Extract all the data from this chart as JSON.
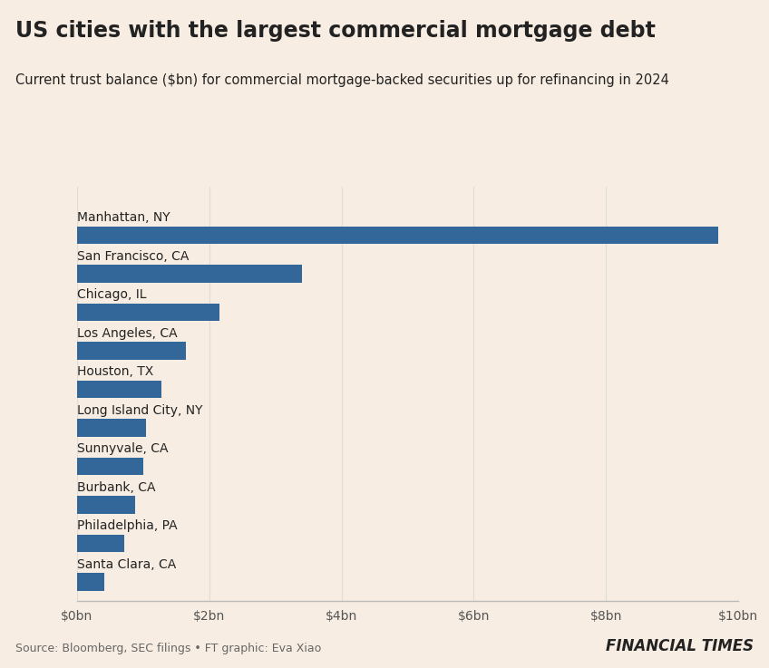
{
  "title": "US cities with the largest commercial mortgage debt",
  "subtitle": "Current trust balance ($bn) for commercial mortgage-backed securities up for refinancing in 2024",
  "categories": [
    "Santa Clara, CA",
    "Philadelphia, PA",
    "Burbank, CA",
    "Sunnyvale, CA",
    "Long Island City, NY",
    "Houston, TX",
    "Los Angeles, CA",
    "Chicago, IL",
    "San Francisco, CA",
    "Manhattan, NY"
  ],
  "values": [
    0.42,
    0.72,
    0.88,
    1.0,
    1.05,
    1.28,
    1.65,
    2.15,
    3.4,
    9.7
  ],
  "bar_color": "#336699",
  "background_color": "#f7ede2",
  "xlim": [
    0,
    10
  ],
  "xtick_labels": [
    "$0bn",
    "$2bn",
    "$4bn",
    "$6bn",
    "$8bn",
    "$10bn"
  ],
  "xtick_values": [
    0,
    2,
    4,
    6,
    8,
    10
  ],
  "source_text": "Source: Bloomberg, SEC filings • FT graphic: Eva Xiao",
  "ft_text": "FINANCIAL TIMES",
  "title_fontsize": 17,
  "subtitle_fontsize": 10.5,
  "label_fontsize": 10,
  "tick_fontsize": 10,
  "bar_height": 0.45,
  "axis_line_color": "#bbbbbb",
  "text_color": "#222222",
  "grid_color": "#dddddd",
  "source_fontsize": 9,
  "ft_fontsize": 12
}
